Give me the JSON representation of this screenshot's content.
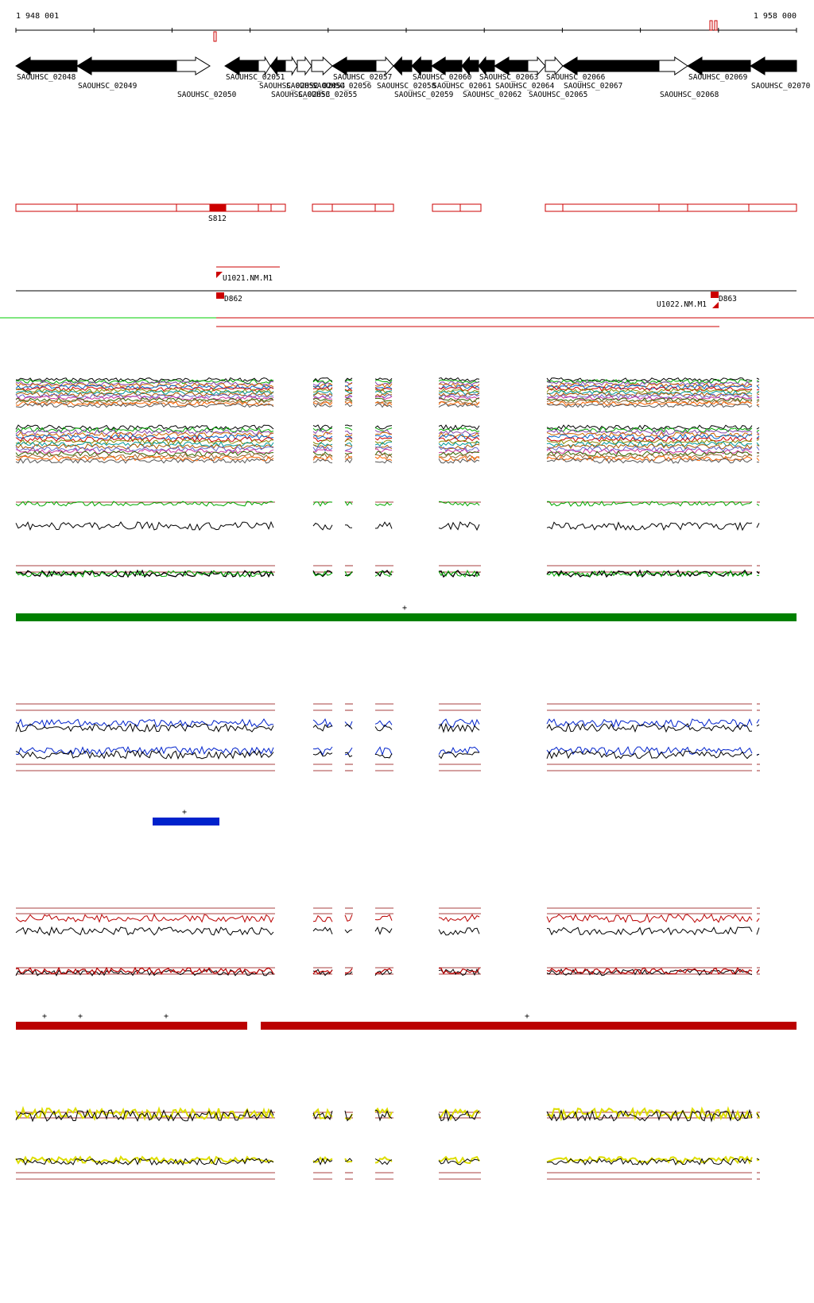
{
  "ruler": {
    "start_label": "1 948 001",
    "end_label": "1 958 000"
  },
  "colors": {
    "gene_fill_minus": "#000000",
    "gene_fill_plus": "#ffffff",
    "outline_red": "#cc0000",
    "section_green": "#008000",
    "section_blue": "#0022cc",
    "section_darkred": "#bb0000",
    "section_yellow": "#dddd00",
    "green_line": "#00cc00"
  },
  "genes": [
    {
      "name": "SAOUHSC_02048",
      "strand": "-"
    },
    {
      "name": "SAOUHSC_02049",
      "strand": "-"
    },
    {
      "name": "SAOUHSC_02050",
      "strand": "+"
    },
    {
      "name": "SAOUHSC_02051",
      "strand": "-"
    },
    {
      "name": "SAOUHSC_02052",
      "strand": "+"
    },
    {
      "name": "SAOUHSC_02053",
      "strand": "-"
    },
    {
      "name": "SAOUHSC_02054",
      "strand": "+"
    },
    {
      "name": "SAOUHSC_02055",
      "strand": "+"
    },
    {
      "name": "SAOUHSC_02056",
      "strand": "+"
    },
    {
      "name": "SAOUHSC_02057",
      "strand": "-"
    },
    {
      "name": "SAOUHSC_02058",
      "strand": "+"
    },
    {
      "name": "SAOUHSC_02059",
      "strand": "-"
    },
    {
      "name": "SAOUHSC_02060",
      "strand": "-"
    },
    {
      "name": "SAOUHSC_02061",
      "strand": "-"
    },
    {
      "name": "SAOUHSC_02062",
      "strand": "-"
    },
    {
      "name": "SAOUHSC_02063",
      "strand": "-"
    },
    {
      "name": "SAOUHSC_02064",
      "strand": "-"
    },
    {
      "name": "SAOUHSC_02065",
      "strand": "+"
    },
    {
      "name": "SAOUHSC_02066",
      "strand": "+"
    },
    {
      "name": "SAOUHSC_02067",
      "strand": "-"
    },
    {
      "name": "SAOUHSC_02068",
      "strand": "+"
    },
    {
      "name": "SAOUHSC_02069",
      "strand": "-"
    },
    {
      "name": "SAOUHSC_02070",
      "strand": "-"
    }
  ],
  "segment_label": "S812",
  "features": {
    "upper": "U1021.NM.M1",
    "down_left": "D862",
    "upper_right": "U1022.NM.M1",
    "down_right": "D863"
  },
  "plus_marker": "+"
}
